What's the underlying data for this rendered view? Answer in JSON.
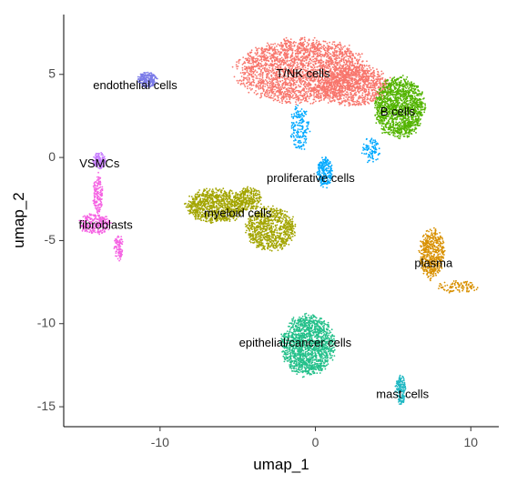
{
  "chart_data": {
    "type": "scatter",
    "title": "",
    "xlabel": "umap_1",
    "ylabel": "umap_2",
    "xlim": [
      -16.2,
      11.8
    ],
    "ylim": [
      -16.2,
      8.6
    ],
    "xticks": [
      -10,
      0,
      10
    ],
    "yticks": [
      5,
      0,
      -5,
      -10,
      -15
    ],
    "grid": false,
    "legend": "none",
    "clusters": [
      {
        "name": "T/NK cells",
        "color": "#F8766D",
        "label_x": -0.8,
        "label_y": 5.0,
        "blobs": [
          {
            "cx": -0.8,
            "cy": 5.2,
            "rx": 4.2,
            "ry": 1.9,
            "n": 2600
          },
          {
            "cx": 2.5,
            "cy": 4.3,
            "rx": 2.3,
            "ry": 1.2,
            "n": 900
          }
        ]
      },
      {
        "name": "B cells",
        "color": "#53B400",
        "label_x": 5.3,
        "label_y": 2.7,
        "blobs": [
          {
            "cx": 5.4,
            "cy": 3.0,
            "rx": 1.6,
            "ry": 1.8,
            "n": 1400
          }
        ]
      },
      {
        "name": "proliferative cells",
        "color": "#00A9FF",
        "label_x": -0.3,
        "label_y": -1.3,
        "blobs": [
          {
            "cx": 0.6,
            "cy": -0.9,
            "rx": 0.5,
            "ry": 0.9,
            "n": 220
          },
          {
            "cx": -1.0,
            "cy": 1.8,
            "rx": 0.6,
            "ry": 1.4,
            "n": 180
          },
          {
            "cx": 3.6,
            "cy": 0.4,
            "rx": 0.6,
            "ry": 0.8,
            "n": 90
          }
        ]
      },
      {
        "name": "myeloid cells",
        "color": "#A58AFF",
        "label_x": -5.0,
        "label_y": -3.4,
        "blobs": []
      },
      {
        "name": "myeloid cells",
        "color": "#A3A500",
        "label_x": -5.0,
        "label_y": -3.4,
        "blobs": [
          {
            "cx": -6.4,
            "cy": -2.9,
            "rx": 1.9,
            "ry": 1.0,
            "n": 900
          },
          {
            "cx": -2.9,
            "cy": -4.3,
            "rx": 1.6,
            "ry": 1.3,
            "n": 800
          },
          {
            "cx": -4.3,
            "cy": -2.5,
            "rx": 0.9,
            "ry": 0.7,
            "n": 250
          }
        ]
      },
      {
        "name": "endothelial cells",
        "color": "#7B7BE8",
        "label_x": -11.6,
        "label_y": 4.3,
        "blobs": [
          {
            "cx": -10.8,
            "cy": 4.7,
            "rx": 0.6,
            "ry": 0.5,
            "n": 200
          }
        ]
      },
      {
        "name": "VSMCs",
        "color": "#C77CFF",
        "label_x": -13.9,
        "label_y": -0.4,
        "blobs": [
          {
            "cx": -13.9,
            "cy": -0.2,
            "rx": 0.4,
            "ry": 0.5,
            "n": 120
          }
        ]
      },
      {
        "name": "fibroblasts",
        "color": "#F564E3",
        "label_x": -13.5,
        "label_y": -4.1,
        "blobs": [
          {
            "cx": -14.0,
            "cy": -2.2,
            "rx": 0.3,
            "ry": 1.2,
            "n": 150
          },
          {
            "cx": -14.2,
            "cy": -4.0,
            "rx": 1.0,
            "ry": 0.6,
            "n": 260
          },
          {
            "cx": -12.7,
            "cy": -5.4,
            "rx": 0.3,
            "ry": 0.8,
            "n": 90
          }
        ]
      },
      {
        "name": "plasma",
        "color": "#D89000",
        "label_x": 7.6,
        "label_y": -6.4,
        "blobs": [
          {
            "cx": 7.5,
            "cy": -5.8,
            "rx": 0.8,
            "ry": 1.5,
            "n": 500
          },
          {
            "cx": 9.2,
            "cy": -7.8,
            "rx": 1.4,
            "ry": 0.35,
            "n": 100
          }
        ]
      },
      {
        "name": "epithelial/cancer cells",
        "color": "#24C08A",
        "label_x": -1.3,
        "label_y": -11.2,
        "blobs": [
          {
            "cx": -0.5,
            "cy": -11.3,
            "rx": 1.7,
            "ry": 1.8,
            "n": 1500
          }
        ]
      },
      {
        "name": "mast cells",
        "color": "#1FB8C3",
        "label_x": 5.6,
        "label_y": -14.3,
        "blobs": [
          {
            "cx": 5.5,
            "cy": -14.0,
            "rx": 0.35,
            "ry": 0.9,
            "n": 150
          }
        ]
      }
    ]
  }
}
